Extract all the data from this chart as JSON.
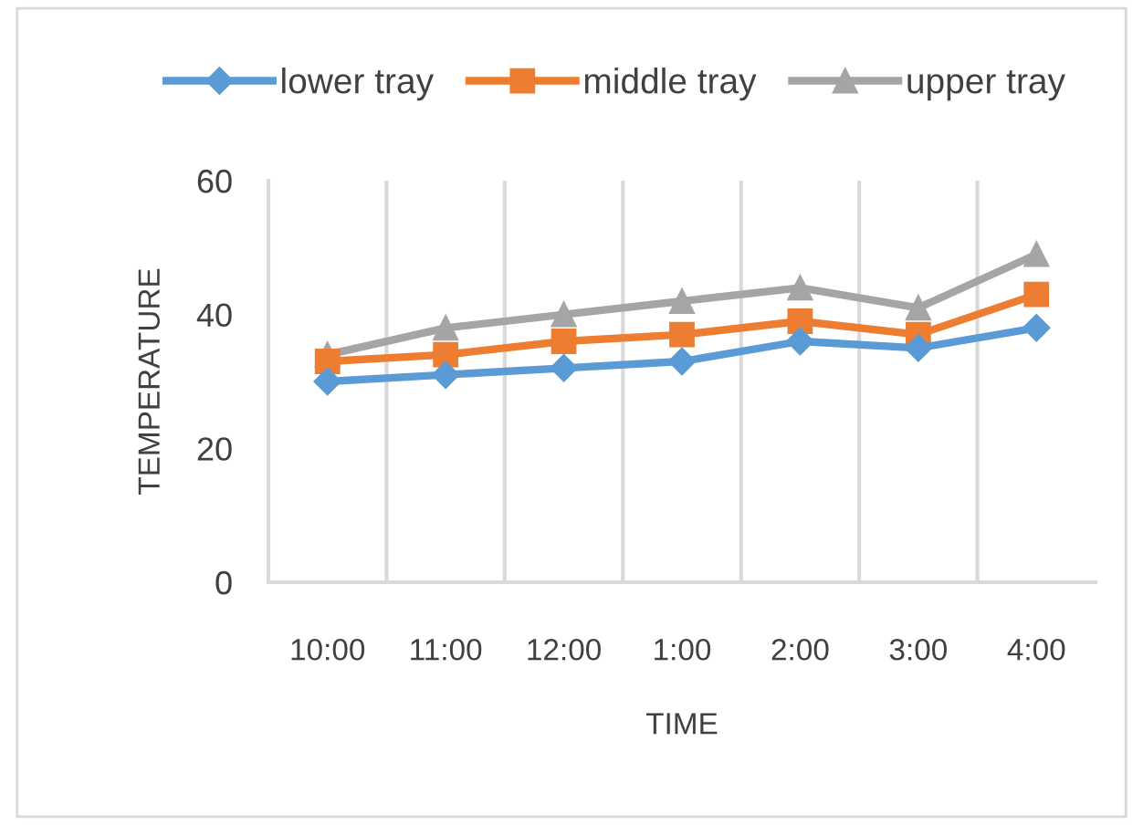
{
  "chart_data": {
    "type": "line",
    "xlabel": "TIME",
    "ylabel": "TEMPERATURE",
    "categories": [
      "10:00",
      "11:00",
      "12:00",
      "1:00",
      "2:00",
      "3:00",
      "4:00"
    ],
    "series": [
      {
        "name": "lower tray",
        "color": "#5b9bd5",
        "marker": "diamond",
        "values": [
          30,
          31,
          32,
          33,
          36,
          35,
          38
        ]
      },
      {
        "name": "middle tray",
        "color": "#ed7d31",
        "marker": "square",
        "values": [
          33,
          34,
          36,
          37,
          39,
          37,
          43
        ]
      },
      {
        "name": "upper tray",
        "color": "#a5a5a5",
        "marker": "triangle",
        "values": [
          34,
          38,
          40,
          42,
          44,
          41,
          49
        ]
      }
    ],
    "ylim": [
      0,
      60
    ],
    "yticks": [
      0,
      20,
      40,
      60
    ],
    "grid": "x",
    "legend": "top",
    "line_style": "solid"
  }
}
